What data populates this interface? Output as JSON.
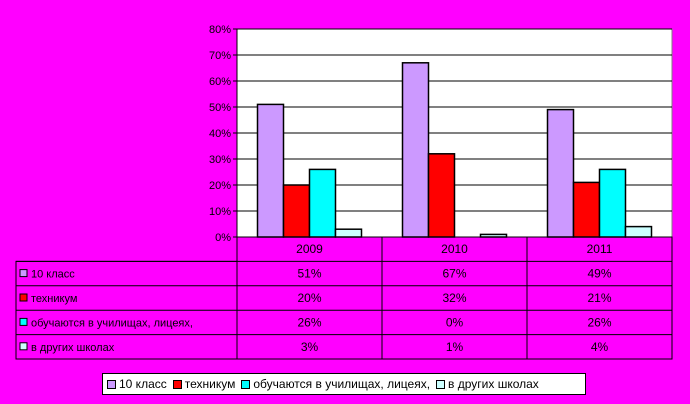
{
  "chart_data": {
    "type": "bar",
    "categories": [
      "2009",
      "2010",
      "2011"
    ],
    "series": [
      {
        "name": "10 класс",
        "values": [
          51,
          67,
          49
        ],
        "value_labels": [
          "51%",
          "67%",
          "49%"
        ],
        "color": "#cc99ff"
      },
      {
        "name": "техникум",
        "values": [
          20,
          32,
          21
        ],
        "value_labels": [
          "20%",
          "32%",
          "21%"
        ],
        "color": "#ff0000"
      },
      {
        "name": "обучаются в училищах, лицеях,",
        "values": [
          26,
          0,
          26
        ],
        "value_labels": [
          "26%",
          "0%",
          "26%"
        ],
        "color": "#00ffff"
      },
      {
        "name": "в других школах",
        "values": [
          3,
          1,
          4
        ],
        "value_labels": [
          "3%",
          "1%",
          "4%"
        ],
        "color": "#ccffff"
      }
    ],
    "ylim": [
      0,
      80
    ],
    "ytick_labels": [
      "0%",
      "10%",
      "20%",
      "30%",
      "40%",
      "50%",
      "60%",
      "70%",
      "80%"
    ],
    "grid": true,
    "legend_position": "bottom",
    "has_data_table": true
  },
  "table_row_labels": [
    "10 класс",
    "техникум",
    "обучаются в училищах, лицеях,",
    "в других школах"
  ],
  "colors": {
    "background": "#ff00ff",
    "plot_area": "#ffffff"
  }
}
